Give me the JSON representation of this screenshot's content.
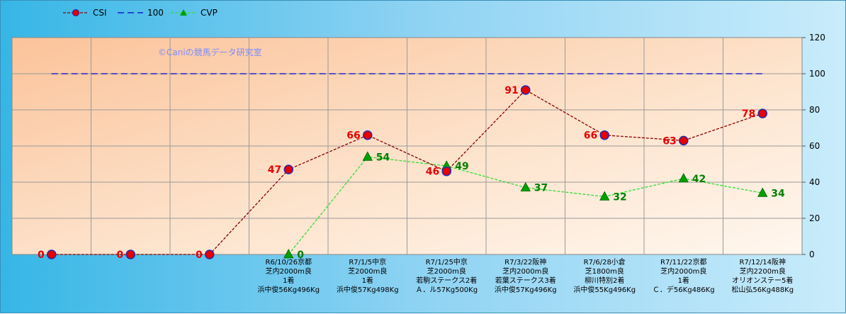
{
  "chart_data": {
    "type": "line",
    "watermark": "©Caniの競馬データ研究室",
    "ylim": [
      0,
      120
    ],
    "yticks": [
      0,
      20,
      40,
      60,
      80,
      100,
      120
    ],
    "categories": [
      [],
      [],
      [],
      [
        "R6/10/26京都",
        "芝内2000m良",
        "1着",
        "浜中俊56Kg496Kg"
      ],
      [
        "R7/1/5中京",
        "芝2000m良",
        "1着",
        "浜中俊57Kg498Kg"
      ],
      [
        "R7/1/25中京",
        "芝2000m良",
        "若駒ステークス2着",
        "Ａ．ル57Kg500Kg"
      ],
      [
        "R7/3/22阪神",
        "芝内2000m良",
        "若葉ステークス3着",
        "浜中俊57Kg496Kg"
      ],
      [
        "R7/6/28小倉",
        "芝1800m良",
        "柳川特別2着",
        "浜中俊55Kg496Kg"
      ],
      [
        "R7/11/22京都",
        "芝内2000m良",
        "1着",
        "Ｃ．デ56Kg486Kg"
      ],
      [
        "R7/12/14阪神",
        "芝内2200m良",
        "オリオンステー5着",
        "松山弘56Kg488Kg"
      ]
    ],
    "series": [
      {
        "name": "CSI",
        "color": "#8b0000",
        "marker_color": "#e60000",
        "values": [
          0,
          0,
          0,
          47,
          66,
          46,
          91,
          66,
          63,
          78
        ]
      },
      {
        "name": "100",
        "color": "#0000cc",
        "values": [
          100,
          100,
          100,
          100,
          100,
          100,
          100,
          100,
          100,
          100
        ]
      },
      {
        "name": "CVP",
        "color": "#33dd33",
        "marker_color": "#00a000",
        "values": [
          null,
          null,
          null,
          0,
          54,
          49,
          37,
          32,
          42,
          34
        ]
      }
    ],
    "legend": "top-left",
    "grid": true
  }
}
